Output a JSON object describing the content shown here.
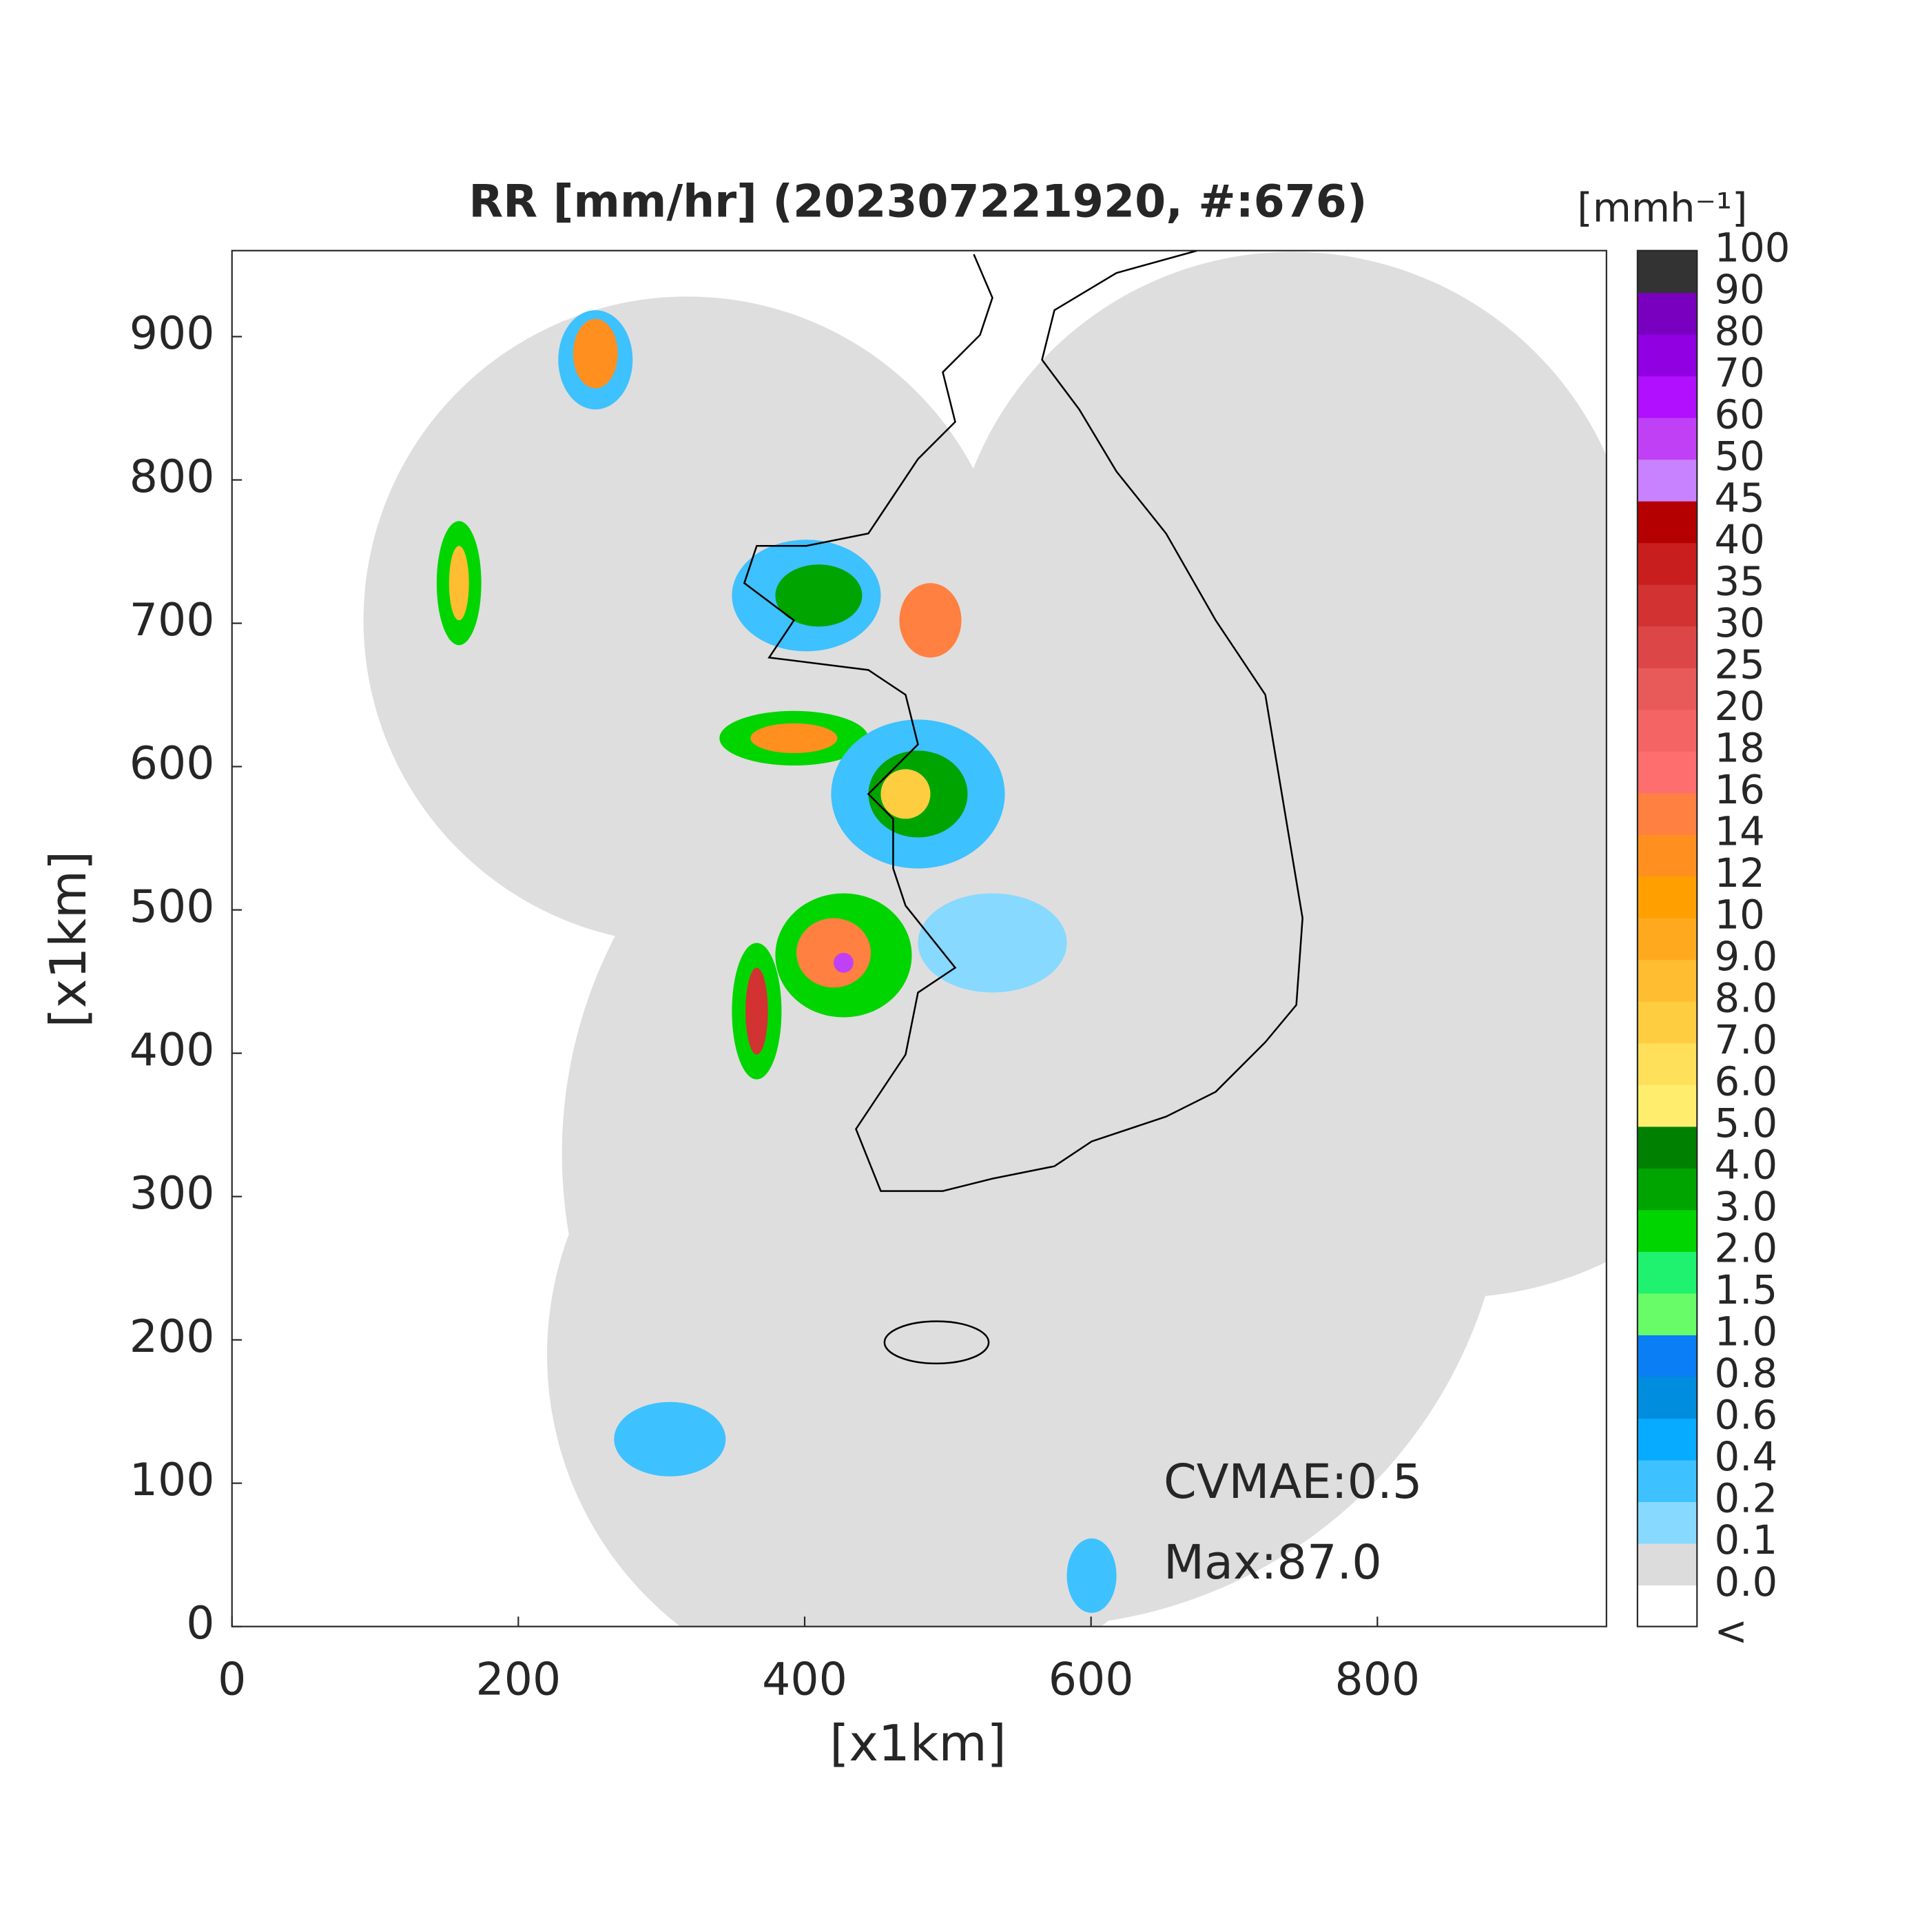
{
  "chart_data": {
    "type": "map",
    "title": "RR [mm/hr] (202307221920, #:676)",
    "xlabel": "[x1km]",
    "ylabel": "[x1km]",
    "xlim": [
      0,
      960
    ],
    "ylim": [
      0,
      960
    ],
    "xticks": [
      0,
      200,
      400,
      600,
      800
    ],
    "yticks": [
      0,
      100,
      200,
      300,
      400,
      500,
      600,
      700,
      800,
      900
    ],
    "annotations": [
      "CVMAE:0.5",
      "Max:87.0"
    ],
    "colorbar": {
      "title": "[mmh⁻¹]",
      "labels": [
        "<",
        "0.0",
        "0.1",
        "0.2",
        "0.4",
        "0.6",
        "0.8",
        "1.0",
        "1.5",
        "2.0",
        "3.0",
        "4.0",
        "5.0",
        "6.0",
        "7.0",
        "8.0",
        "9.0",
        "10",
        "12",
        "14",
        "16",
        "18",
        "20",
        "25",
        "30",
        "35",
        "40",
        "45",
        "50",
        "60",
        "70",
        "80",
        "90",
        "100"
      ],
      "colors": [
        "#ffffff",
        "#dcdcdc",
        "#87d9ff",
        "#3ec1ff",
        "#07abff",
        "#008dde",
        "#0a7ef5",
        "#69fc69",
        "#1ef26e",
        "#00d500",
        "#00a400",
        "#008000",
        "#ffee6e",
        "#ffe05a",
        "#ffcd40",
        "#ffbe32",
        "#ffaa1e",
        "#ffa000",
        "#ff9020",
        "#ff8040",
        "#ff6e6e",
        "#f56464",
        "#e85a5a",
        "#dd4646",
        "#d23232",
        "#c81e1e",
        "#b40000",
        "#c882ff",
        "#c040f5",
        "#b010ff",
        "#9000e0",
        "#7a00c0",
        "#333333"
      ]
    }
  }
}
